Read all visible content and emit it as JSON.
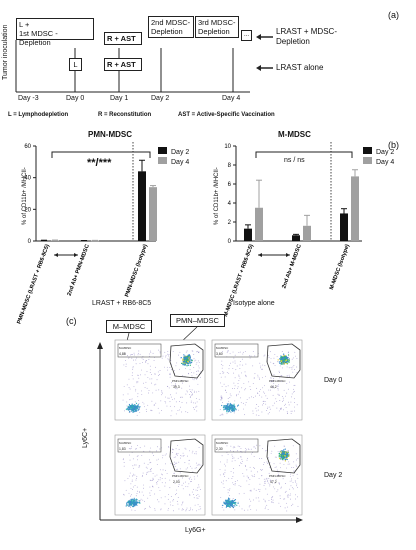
{
  "panel_a": {
    "label": "(a)",
    "axis_label": "Tumor inoculation",
    "box_L_mdsc_line1": "L +",
    "box_L_mdsc_line2": "1st MDSC - Depletion",
    "box_L": "L",
    "box_R_AST_top": "R + AST",
    "box_R_AST_bottom": "R + AST",
    "box_2nd_line1": "2nd MDSC-",
    "box_2nd_line2": "Depletion",
    "box_3rd_line1": "3rd MDSC-",
    "box_3rd_line2": "Depletion",
    "box_ellipsis": "...",
    "legend_top_line1": "LRAST + MDSC-",
    "legend_top_line2": "Depletion",
    "legend_bottom": "LRAST alone",
    "days": [
      "Day -3",
      "Day 0",
      "Day 1",
      "Day 2",
      "Day 4"
    ],
    "footnote_L": "L = Lymphodepletion",
    "footnote_R": "R = Reconstitution",
    "footnote_AST": "AST = Active-Specific Vaccination"
  },
  "panel_b": {
    "label": "(b)",
    "chart_data": [
      {
        "type": "bar",
        "title": "PMN-MDSC",
        "ylabel": "% of CD11b+ /MHCII-",
        "ylim": [
          0,
          60
        ],
        "yticks": [
          "0",
          "20",
          "40",
          "60"
        ],
        "categories": [
          "PMN-MDSC (LRAST + RB6-8C5)",
          "2nd Ab+ PMN-MDSC",
          "PMN-MDSC (Isotype)"
        ],
        "series": [
          {
            "name": "Day 2",
            "color": "#111111",
            "values": [
              0.3,
              0.2,
              44
            ]
          },
          {
            "name": "Day 4",
            "color": "#a0a0a0",
            "values": [
              0.4,
              0.3,
              34
            ]
          }
        ],
        "errors": [
          [
            0.2,
            0.1,
            7
          ],
          [
            0.2,
            0.1,
            1
          ]
        ],
        "significance": "**/***",
        "legend": "right"
      },
      {
        "type": "bar",
        "title": "M-MDSC",
        "ylabel": "% of CD11b+ /MHCII-",
        "ylim": [
          0,
          10
        ],
        "yticks": [
          "0",
          "2",
          "4",
          "6",
          "8",
          "10"
        ],
        "categories": [
          "M-MDSC (LRAST + RB6-8C5)",
          "2nd Ab+ M-MDSC",
          "M-MDSC (Isotype)"
        ],
        "series": [
          {
            "name": "Day 2",
            "color": "#111111",
            "values": [
              1.3,
              0.6,
              2.9
            ]
          },
          {
            "name": "Day 4",
            "color": "#a0a0a0",
            "values": [
              3.5,
              1.6,
              6.8
            ]
          }
        ],
        "errors": [
          [
            0.4,
            0.1,
            0.5
          ],
          [
            2.9,
            1.1,
            0.7
          ]
        ],
        "significance": "ns / ns",
        "legend": "right"
      }
    ]
  },
  "panel_c": {
    "label": "(c)",
    "col1_title": "LRAST + RB6-8C5",
    "col2_title": "Isotype alone",
    "callout_m": "M–MDSC",
    "callout_pmn": "PMN–MDSC",
    "y_axis": "Ly6C+",
    "x_axis": "Ly6G+",
    "rows": [
      "Day 0",
      "Day 2"
    ],
    "plots": [
      {
        "m_label": "M-MDSC",
        "m_value": "4,88",
        "pmn_label": "PMN-MDSC",
        "pmn_value": "39,3"
      },
      {
        "m_label": "M-MDSC",
        "m_value": "3,60",
        "pmn_label": "PMN-MDSC",
        "pmn_value": "44,2"
      },
      {
        "m_label": "M-MDSC",
        "m_value": "1,83",
        "pmn_label": "PMN-MDSC",
        "pmn_value": "2,03"
      },
      {
        "m_label": "M-MDSC",
        "m_value": "2,30",
        "pmn_label": "PMN-MDSC",
        "pmn_value": "47,2"
      }
    ]
  }
}
